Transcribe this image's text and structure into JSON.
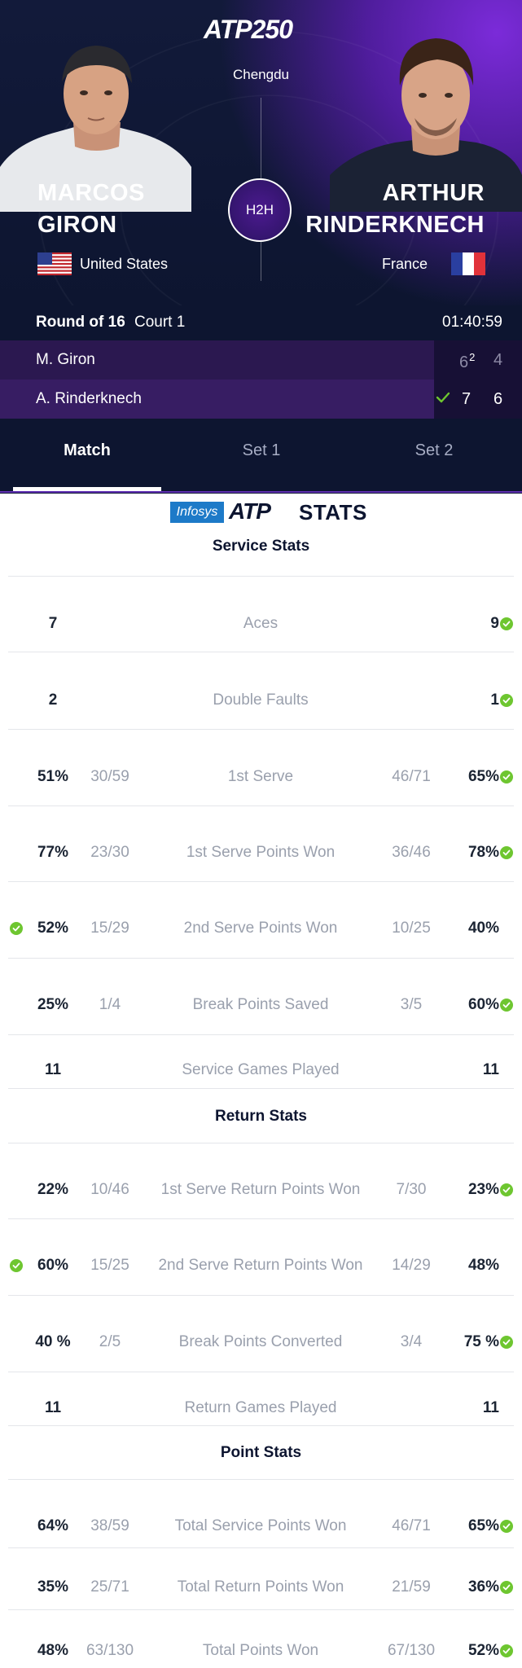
{
  "header": {
    "logo": "ATP250",
    "city": "Chengdu",
    "h2h_label": "H2H",
    "player1": {
      "first": "MARCOS",
      "last": "GIRON",
      "country": "United States"
    },
    "player2": {
      "first": "ARTHUR",
      "last": "RINDERKNECH",
      "country": "France"
    }
  },
  "match_info": {
    "round": "Round of 16",
    "court": "Court 1",
    "duration": "01:40:59"
  },
  "scoreboard": [
    {
      "name": "M. Giron",
      "sets": [
        "6",
        "4"
      ],
      "tiebreak": "2",
      "winner": false
    },
    {
      "name": "A. Rinderknech",
      "sets": [
        "7",
        "6"
      ],
      "winner": true
    }
  ],
  "tabs": [
    "Match",
    "Set 1",
    "Set 2"
  ],
  "active_tab": "Match",
  "stats_brand": {
    "sponsor": "Infosys",
    "atp": "ATP",
    "stats": "STATS"
  },
  "sections": {
    "service": "Service Stats",
    "return": "Return Stats",
    "point": "Point Stats"
  },
  "stats": {
    "service": [
      {
        "label": "Aces",
        "left": "7",
        "left_sub": "",
        "right": "9",
        "right_sub": "",
        "leader": "right"
      },
      {
        "label": "Double Faults",
        "left": "2",
        "left_sub": "",
        "right": "1",
        "right_sub": "",
        "leader": "right"
      },
      {
        "label": "1st Serve",
        "left": "51%",
        "left_sub": "30/59",
        "right": "65%",
        "right_sub": "46/71",
        "leader": "right"
      },
      {
        "label": "1st Serve Points Won",
        "left": "77%",
        "left_sub": "23/30",
        "right": "78%",
        "right_sub": "36/46",
        "leader": "right"
      },
      {
        "label": "2nd Serve Points Won",
        "left": "52%",
        "left_sub": "15/29",
        "right": "40%",
        "right_sub": "10/25",
        "leader": "left"
      },
      {
        "label": "Break Points Saved",
        "left": "25%",
        "left_sub": "1/4",
        "right": "60%",
        "right_sub": "3/5",
        "leader": "right"
      },
      {
        "label": "Service Games Played",
        "left": "11",
        "left_sub": "",
        "right": "11",
        "right_sub": "",
        "leader": "none"
      }
    ],
    "return": [
      {
        "label": "1st Serve Return Points Won",
        "left": "22%",
        "left_sub": "10/46",
        "right": "23%",
        "right_sub": "7/30",
        "leader": "right"
      },
      {
        "label": "2nd Serve Return Points Won",
        "left": "60%",
        "left_sub": "15/25",
        "right": "48%",
        "right_sub": "14/29",
        "leader": "left"
      },
      {
        "label": "Break Points Converted",
        "left": "40 %",
        "left_sub": "2/5",
        "right": "75 %",
        "right_sub": "3/4",
        "leader": "right"
      },
      {
        "label": "Return Games Played",
        "left": "11",
        "left_sub": "",
        "right": "11",
        "right_sub": "",
        "leader": "none"
      }
    ],
    "point": [
      {
        "label": "Total Service Points Won",
        "left": "64%",
        "left_sub": "38/59",
        "right": "65%",
        "right_sub": "46/71",
        "leader": "right"
      },
      {
        "label": "Total Return Points Won",
        "left": "35%",
        "left_sub": "25/71",
        "right": "36%",
        "right_sub": "21/59",
        "leader": "right"
      },
      {
        "label": "Total Points Won",
        "left": "48%",
        "left_sub": "63/130",
        "right": "52%",
        "right_sub": "67/130",
        "leader": "right"
      }
    ]
  },
  "colors": {
    "leader_check": "#6ec630",
    "header_bg": "#0d1530",
    "accent_purple": "#5f2fb1"
  }
}
